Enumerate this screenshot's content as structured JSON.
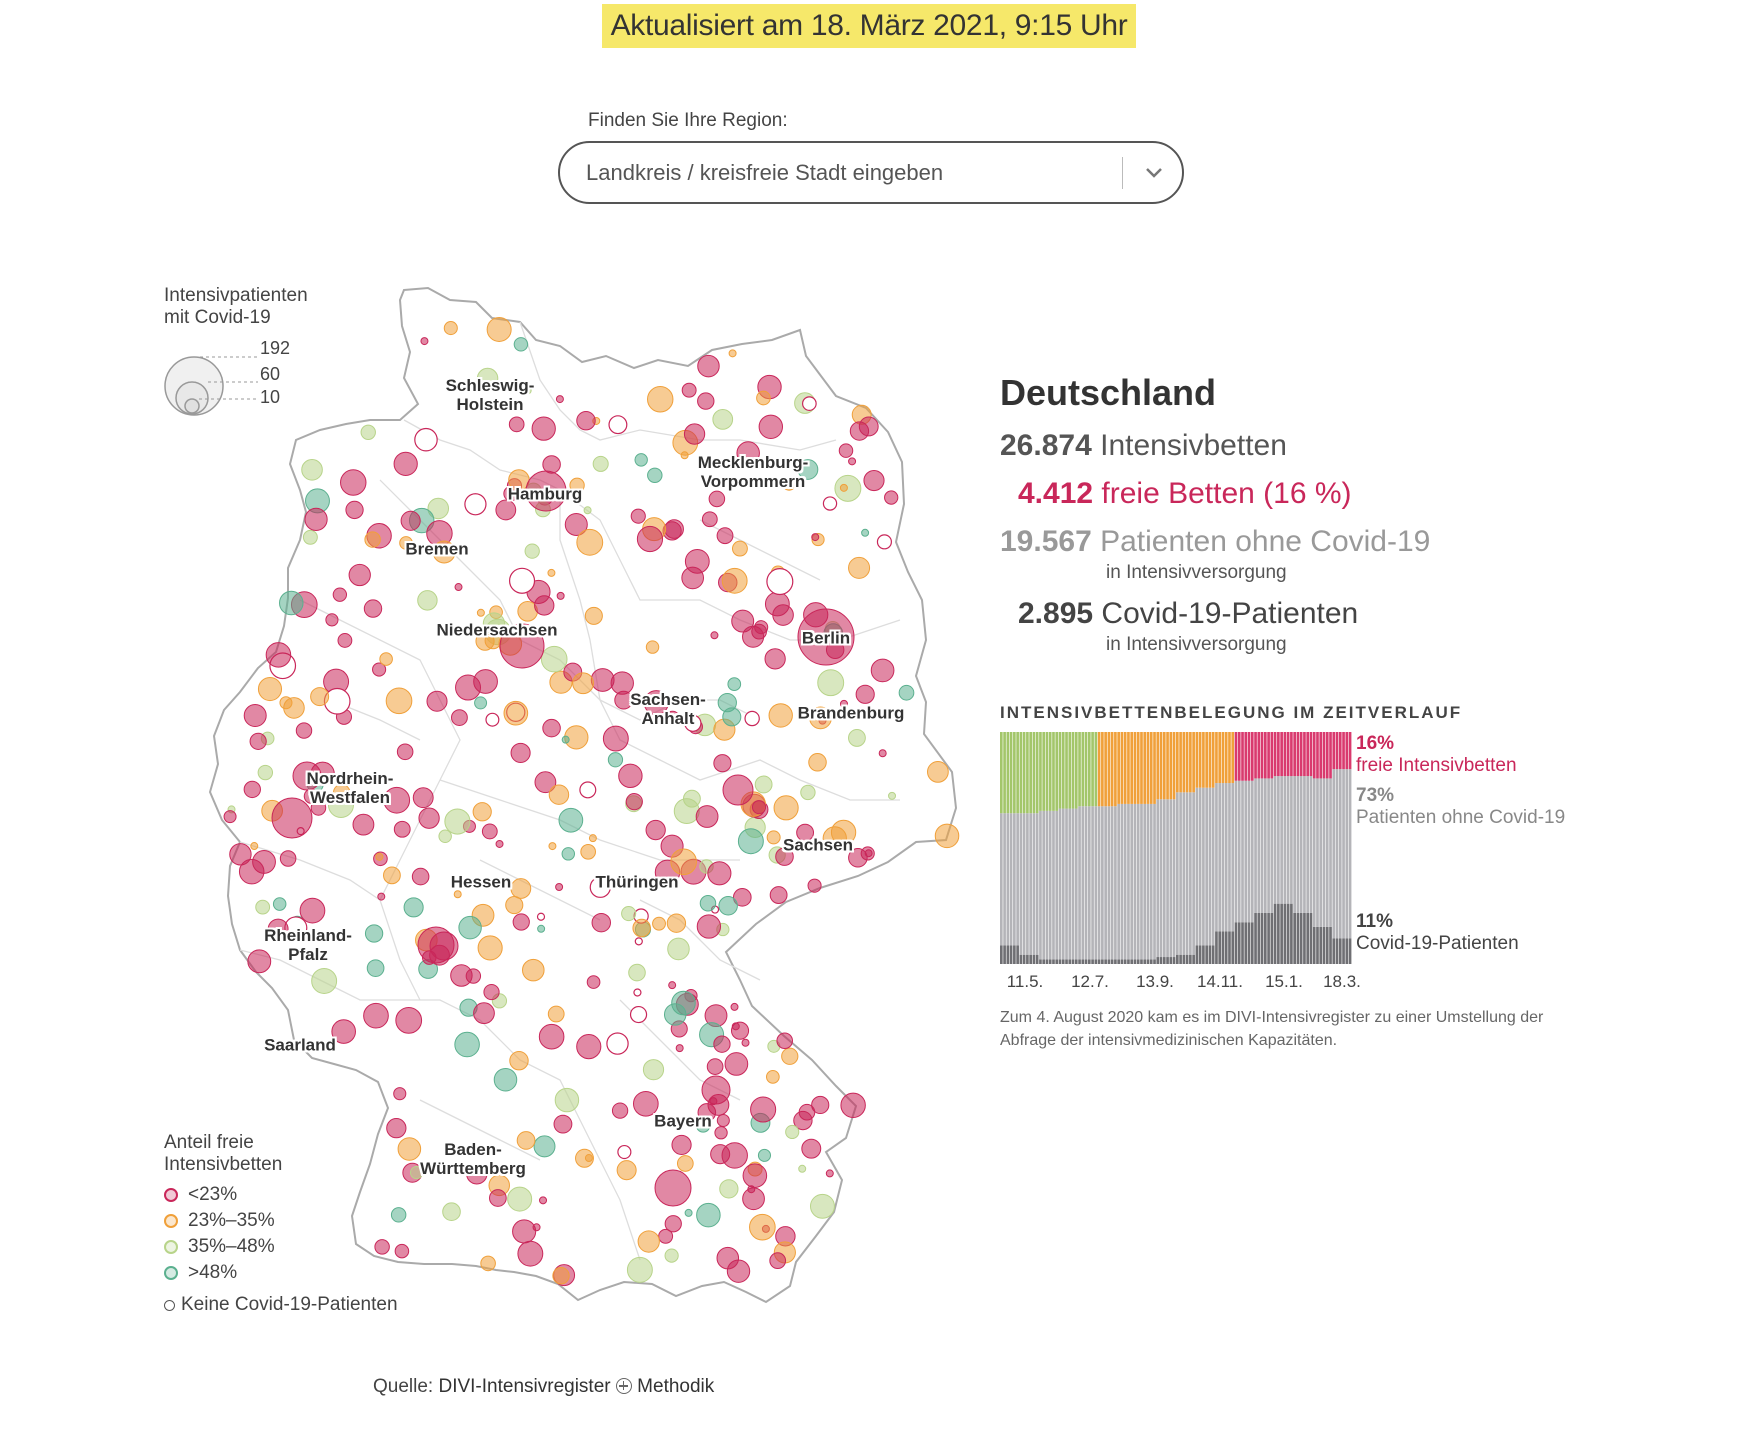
{
  "banner": "Aktualisiert am 18. März 2021, 9:15 Uhr",
  "region": {
    "label": "Finden Sie Ihre Region:",
    "placeholder": "Landkreis / kreisfreie Stadt eingeben",
    "dropdown_icon": "chevron-down-icon"
  },
  "legend_size": {
    "title_line1": "Intensivpatienten",
    "title_line2": "mit Covid-19",
    "values": [
      "192",
      "60",
      "10"
    ]
  },
  "legend_color": {
    "title_line1": "Anteil freie",
    "title_line2": "Intensivbetten",
    "items": [
      {
        "label": "<23%",
        "color": "#c9275a"
      },
      {
        "label": "23%–35%",
        "color": "#f0a03a"
      },
      {
        "label": "35%–48%",
        "color": "#b8d48a"
      },
      {
        "label": ">48%",
        "color": "#5bb08f"
      }
    ],
    "empty_label": "Keine Covid-19-Patienten"
  },
  "map": {
    "states": [
      {
        "name": "Schleswig-\nHolstein"
      },
      {
        "name": "Mecklenburg-\nVorpommern"
      },
      {
        "name": "Hamburg"
      },
      {
        "name": "Bremen"
      },
      {
        "name": "Niedersachsen"
      },
      {
        "name": "Berlin"
      },
      {
        "name": "Sachsen-\nAnhalt"
      },
      {
        "name": "Brandenburg"
      },
      {
        "name": "Nordrhein-\nWestfalen"
      },
      {
        "name": "Sachsen"
      },
      {
        "name": "Hessen"
      },
      {
        "name": "Thüringen"
      },
      {
        "name": "Rheinland-\nPfalz"
      },
      {
        "name": "Saarland"
      },
      {
        "name": "Bayern"
      },
      {
        "name": "Baden-\nWürttemberg"
      }
    ]
  },
  "stats": {
    "title": "Deutschland",
    "beds_value": "26.874",
    "beds_label": "Intensivbetten",
    "free_value": "4.412",
    "free_label": "freie Betten (16 %)",
    "non_covid_value": "19.567",
    "non_covid_label": "Patienten ohne Covid-19",
    "non_covid_sub": "in Intensivversorgung",
    "covid_value": "2.895",
    "covid_label": "Covid-19-Patienten",
    "covid_sub": "in Intensivversorgung"
  },
  "chart_data": {
    "type": "area",
    "title": "INTENSIVBETTENBELEGUNG IM ZEITVERLAUF",
    "x_ticks": [
      "11.5.",
      "12.7.",
      "13.9.",
      "14.11.",
      "15.1.",
      "18.3."
    ],
    "ylim": [
      0,
      100
    ],
    "series": [
      {
        "name": "Covid-19-Patienten",
        "values": [
          8,
          4,
          2,
          2,
          2,
          2,
          2,
          2,
          3,
          4,
          8,
          14,
          18,
          22,
          26,
          22,
          16,
          11
        ],
        "color": "#6f6f73"
      },
      {
        "name": "Patienten ohne Covid-19",
        "values": [
          57,
          61,
          64,
          65,
          66,
          66,
          67,
          67,
          68,
          70,
          68,
          64,
          61,
          58,
          55,
          59,
          64,
          73
        ],
        "color": "#b4b4b8"
      },
      {
        "name": "freie Intensivbetten",
        "values": [
          35,
          35,
          34,
          33,
          32,
          32,
          31,
          31,
          29,
          26,
          24,
          22,
          21,
          20,
          19,
          19,
          20,
          16
        ],
        "band_colors": [
          "#a3c66a",
          "#a3c66a",
          "#a3c66a",
          "#a3c66a",
          "#a3c66a",
          "#f0a03a",
          "#f0a03a",
          "#f0a03a",
          "#f0a03a",
          "#f0a03a",
          "#f0a03a",
          "#f0a03a",
          "#d93a6e",
          "#d93a6e",
          "#d93a6e",
          "#d93a6e",
          "#d93a6e",
          "#d93a6e"
        ]
      }
    ],
    "legend": [
      {
        "pct": "16%",
        "label": "freie Intensivbetten",
        "color": "#c9275a"
      },
      {
        "pct": "73%",
        "label": "Patienten ohne Covid-19",
        "color": "#888888"
      },
      {
        "pct": "11%",
        "label": "Covid-19-Patienten",
        "color": "#444444"
      }
    ],
    "note": "Zum 4. August 2020 kam es im DIVI-Intensivregister zu einer Umstellung der Abfrage der intensivmedizinischen Kapazitäten."
  },
  "source": {
    "prefix": "Quelle:",
    "link": "DIVI-Intensivregister",
    "method_icon": "plus-circle-icon",
    "method": "Methodik"
  }
}
